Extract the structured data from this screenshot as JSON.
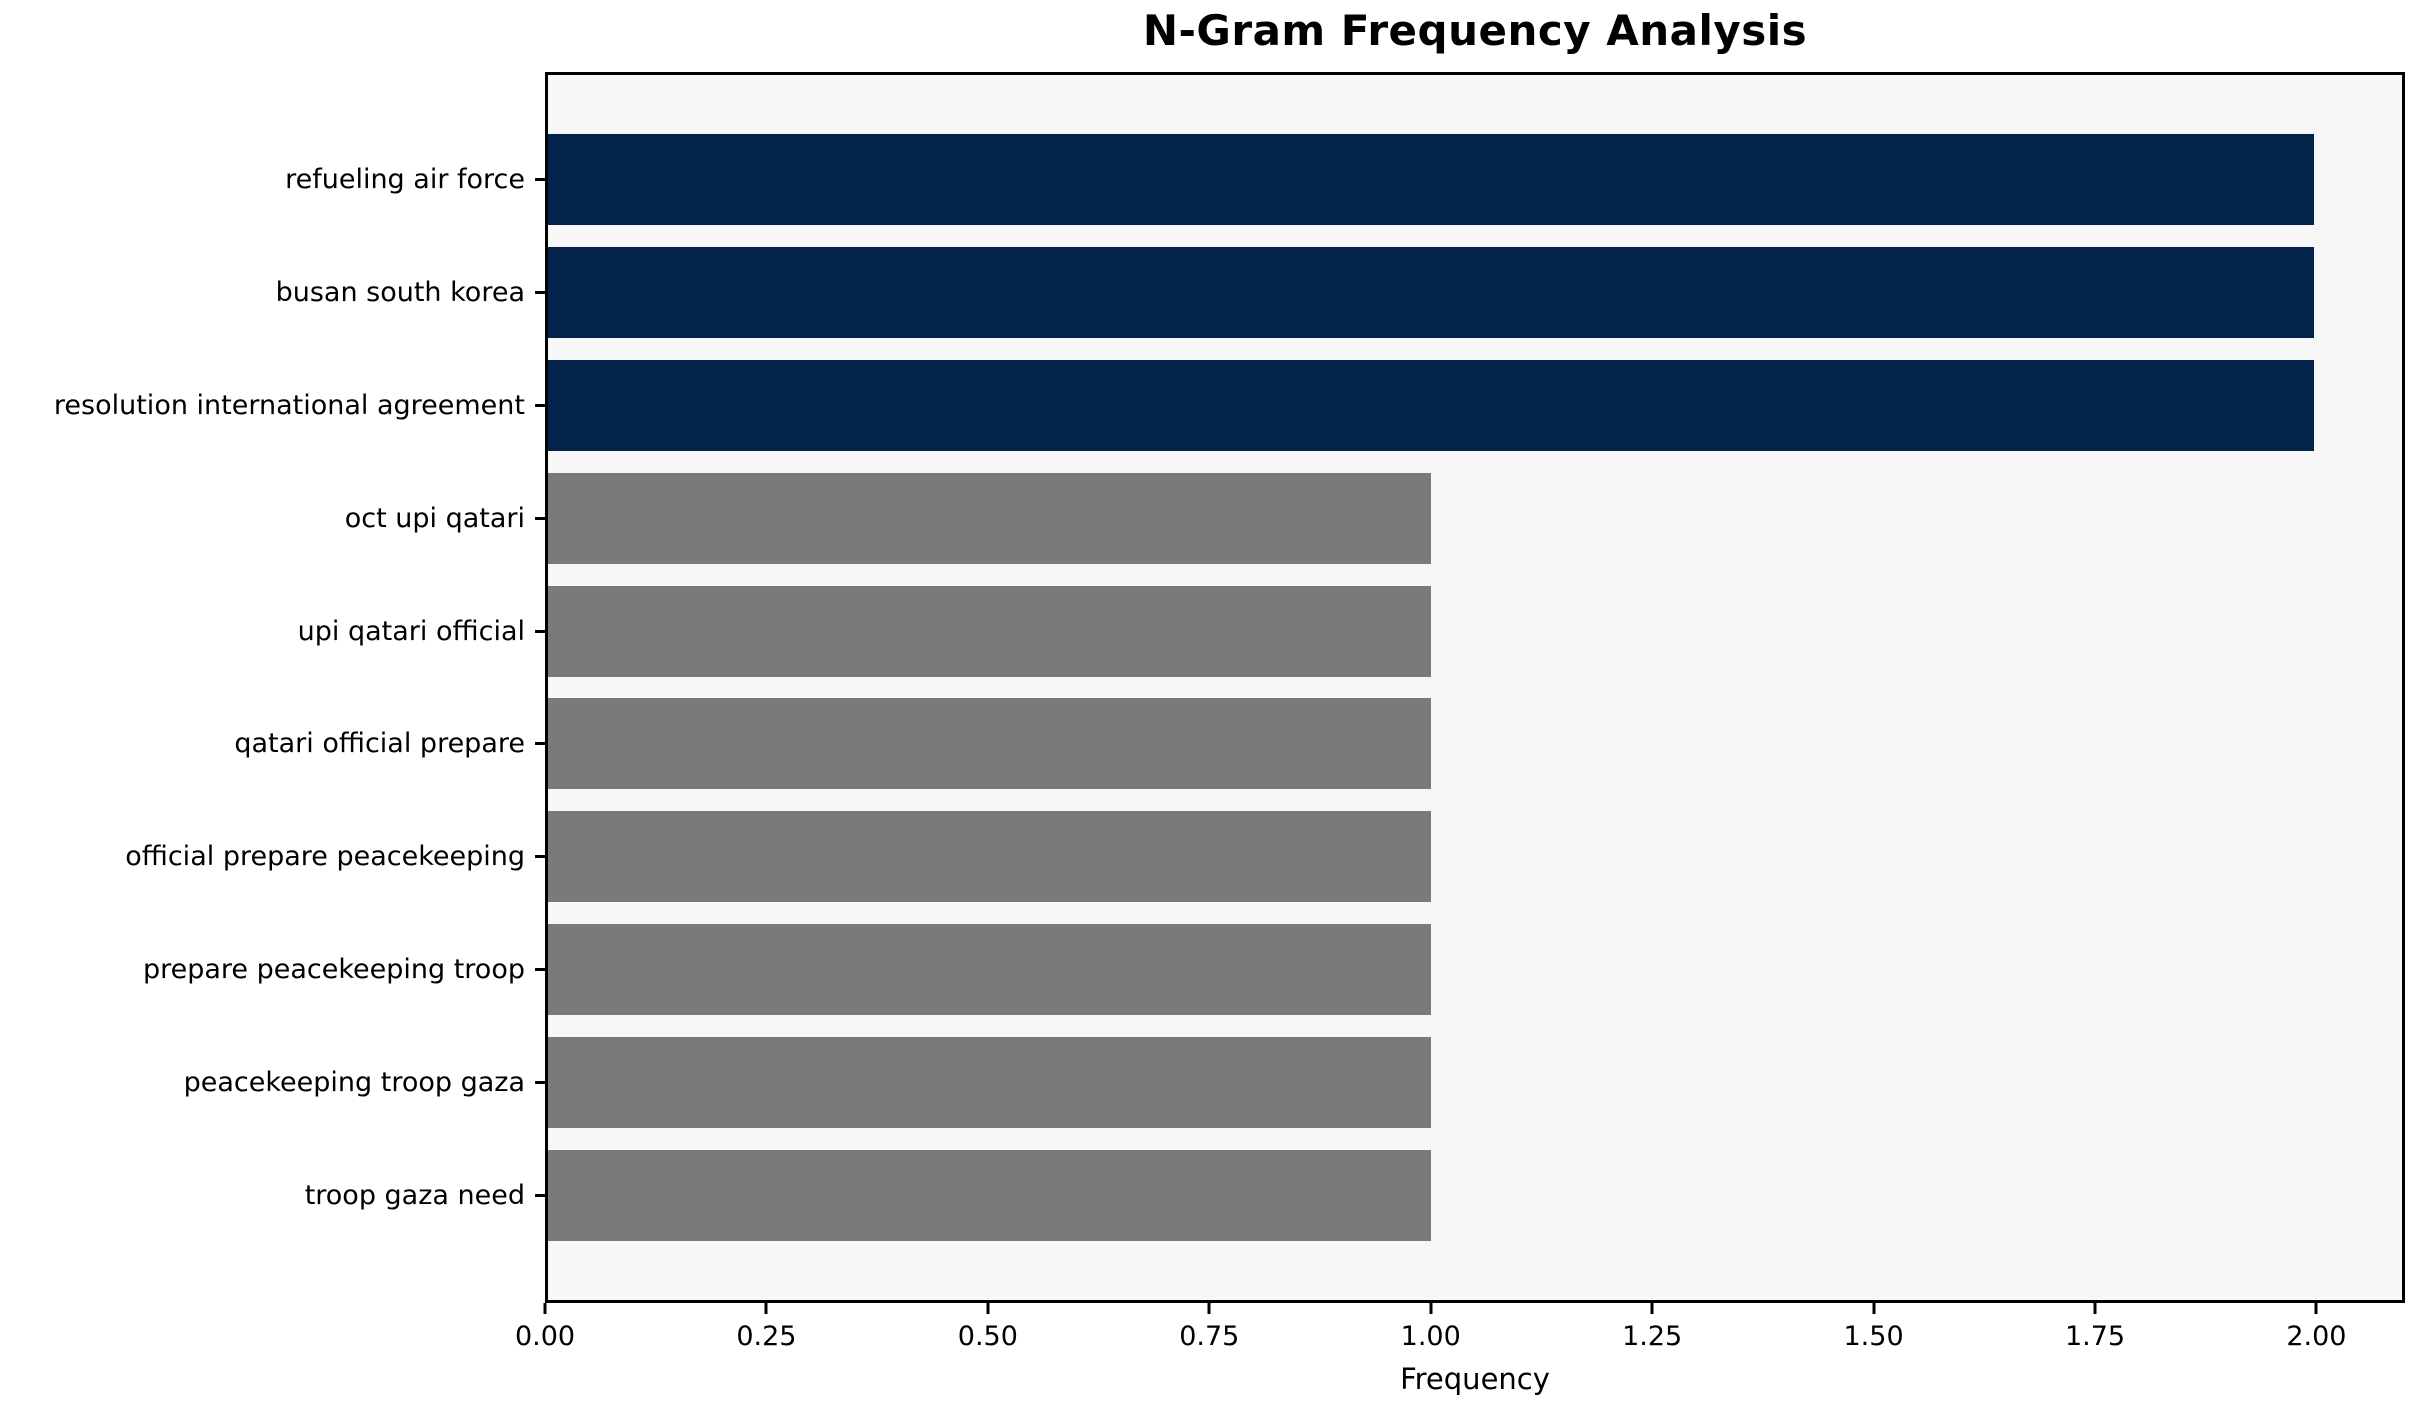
{
  "title": "N-Gram Frequency Analysis",
  "chart_data": {
    "type": "bar",
    "orientation": "horizontal",
    "title": "N-Gram Frequency Analysis",
    "xlabel": "Frequency",
    "ylabel": "",
    "categories": [
      "refueling air force",
      "busan south korea",
      "resolution international agreement",
      "oct upi qatari",
      "upi qatari official",
      "qatari official prepare",
      "official prepare peacekeeping",
      "prepare peacekeeping troop",
      "peacekeeping troop gaza",
      "troop gaza need"
    ],
    "values": [
      2,
      2,
      2,
      1,
      1,
      1,
      1,
      1,
      1,
      1
    ],
    "bar_colors": [
      "#04234a",
      "#04234a",
      "#04234a",
      "#7a7a78",
      "#7a7a78",
      "#7a7a78",
      "#7a7a78",
      "#7a7a78",
      "#7a7a78",
      "#7a7a78"
    ],
    "xlim": [
      0,
      2.1
    ],
    "xtick_values": [
      0,
      0.25,
      0.5,
      0.75,
      1.0,
      1.25,
      1.5,
      1.75,
      2.0
    ],
    "xtick_labels": [
      "0.00",
      "0.25",
      "0.50",
      "0.75",
      "1.00",
      "1.25",
      "1.50",
      "1.75",
      "2.00"
    ],
    "grid": false,
    "legend": false,
    "plot_background": "#f7f7f7",
    "figure_background": "#ffffff",
    "high_freq_color": "#04234a",
    "low_freq_color": "#7a7a78"
  }
}
